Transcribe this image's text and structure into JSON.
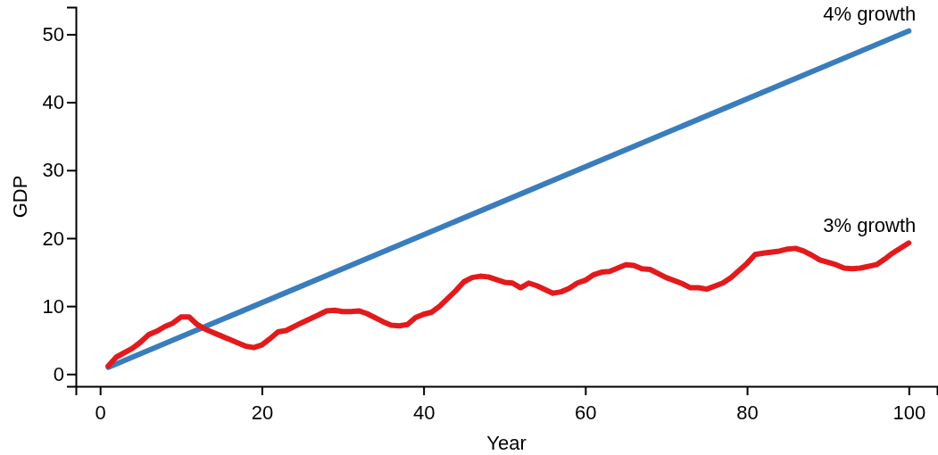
{
  "chart_data": {
    "type": "line",
    "xlabel": "Year",
    "ylabel": "GDP",
    "xlim": [
      -3,
      103.5
    ],
    "ylim": [
      -1.8,
      54
    ],
    "xticks": [
      0,
      20,
      40,
      60,
      80,
      100
    ],
    "yticks": [
      0,
      10,
      20,
      30,
      40,
      50
    ],
    "grid": false,
    "legend": false,
    "marker": "none",
    "line_style": "solid",
    "series": [
      {
        "name": "4% growth",
        "color": "#3a7dbd",
        "x": [
          1,
          100
        ],
        "values": [
          1,
          50.5
        ]
      },
      {
        "name": "3% growth",
        "color": "#e31a1c",
        "x": [
          1,
          2,
          4,
          5,
          6,
          7,
          8,
          9,
          10,
          11,
          12,
          13,
          15,
          17,
          18,
          19,
          20,
          21,
          22,
          23,
          25,
          27,
          28,
          29,
          30,
          31,
          32,
          33,
          35,
          36,
          37,
          38,
          39,
          40,
          41,
          42,
          44,
          45,
          46,
          47,
          48,
          49,
          50,
          51,
          52,
          53,
          54,
          56,
          57,
          58,
          59,
          60,
          61,
          62,
          63,
          64,
          65,
          66,
          67,
          68,
          70,
          72,
          73,
          74,
          75,
          77,
          78,
          80,
          81,
          82,
          84,
          85,
          86,
          87,
          88,
          89,
          91,
          92,
          93,
          94,
          96,
          97,
          98,
          100
        ],
        "values": [
          1.2,
          2.5,
          3.8,
          4.7,
          5.8,
          6.3,
          7.0,
          7.5,
          8.4,
          8.4,
          7.3,
          6.6,
          5.6,
          4.6,
          4.1,
          3.9,
          4.3,
          5.2,
          6.2,
          6.4,
          7.6,
          8.7,
          9.3,
          9.4,
          9.2,
          9.2,
          9.3,
          8.9,
          7.7,
          7.2,
          7.1,
          7.3,
          8.3,
          8.8,
          9.1,
          10.0,
          12.3,
          13.6,
          14.2,
          14.4,
          14.3,
          13.9,
          13.5,
          13.4,
          12.7,
          13.4,
          13.0,
          11.9,
          12.1,
          12.6,
          13.4,
          13.8,
          14.6,
          15.0,
          15.1,
          15.6,
          16.1,
          16.0,
          15.5,
          15.4,
          14.2,
          13.3,
          12.7,
          12.7,
          12.5,
          13.4,
          14.2,
          16.3,
          17.6,
          17.8,
          18.1,
          18.4,
          18.5,
          18.1,
          17.5,
          16.8,
          16.1,
          15.6,
          15.5,
          15.6,
          16.1,
          16.9,
          17.8,
          19.3
        ]
      }
    ]
  }
}
